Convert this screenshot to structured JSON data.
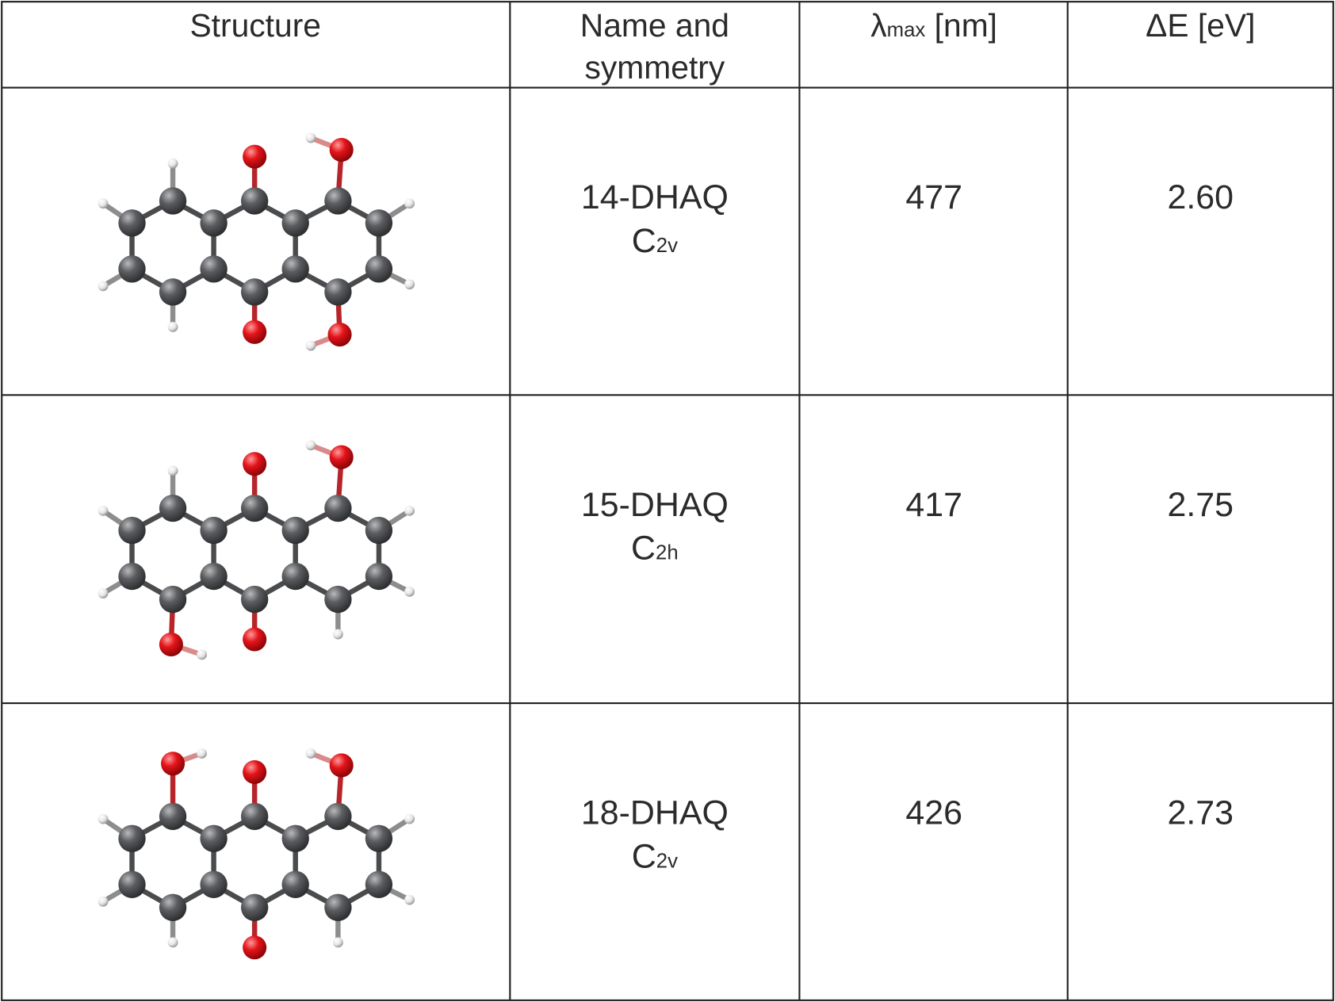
{
  "headers": {
    "structure": "Structure",
    "name_line1": "Name and",
    "name_line2": "symmetry",
    "lambda_symbol": "λ",
    "lambda_sub": "max",
    "lambda_unit": " [nm]",
    "energy": "ΔE [eV]"
  },
  "rows": [
    {
      "name": "14-DHAQ",
      "sym_main": "C",
      "sym_sub": "2v",
      "lambda_max": "477",
      "delta_e": "2.60",
      "hydroxyl_positions": [
        1,
        4
      ]
    },
    {
      "name": "15-DHAQ",
      "sym_main": "C",
      "sym_sub": "2h",
      "lambda_max": "417",
      "delta_e": "2.75",
      "hydroxyl_positions": [
        1,
        5
      ]
    },
    {
      "name": "18-DHAQ",
      "sym_main": "C",
      "sym_sub": "2v",
      "lambda_max": "426",
      "delta_e": "2.73",
      "hydroxyl_positions": [
        1,
        8
      ]
    }
  ],
  "colors": {
    "carbon": "#5b5d60",
    "oxygen": "#e3141a",
    "hydrogen": "#f2f2f2",
    "grid": "#222222"
  }
}
